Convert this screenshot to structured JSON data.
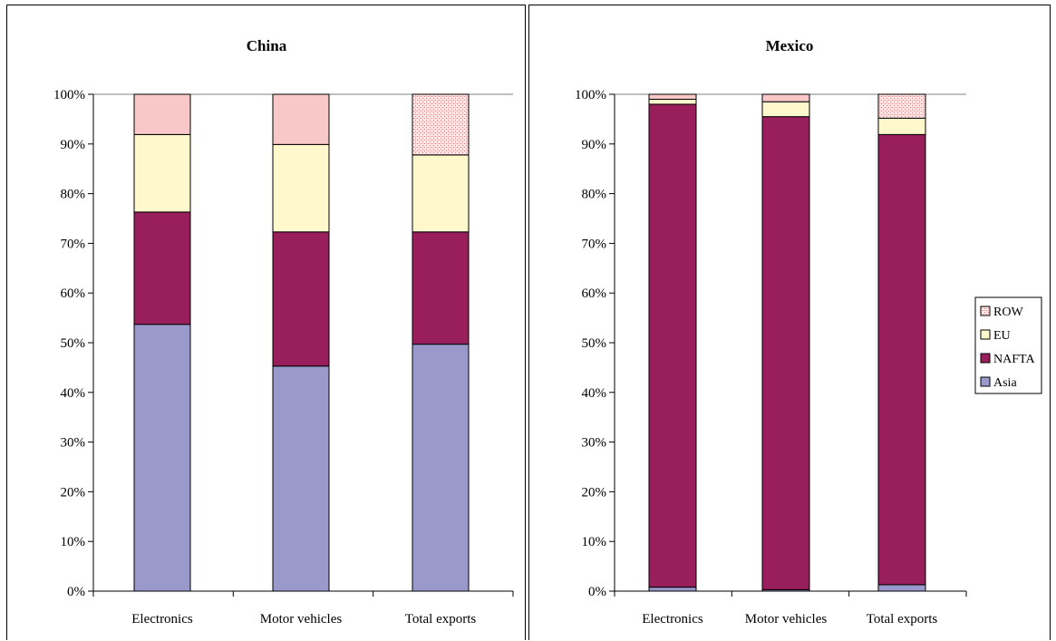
{
  "chart_data": [
    {
      "type": "bar",
      "stacked": true,
      "title": "China",
      "categories": [
        "Electronics",
        "Motor vehicles",
        "Total exports"
      ],
      "yticks": [
        "0%",
        "10%",
        "20%",
        "30%",
        "40%",
        "50%",
        "60%",
        "70%",
        "80%",
        "90%",
        "100%"
      ],
      "ylim": [
        0,
        100
      ],
      "series": [
        {
          "name": "Asia",
          "values": [
            53.7,
            45.3,
            49.7
          ]
        },
        {
          "name": "NAFTA",
          "values": [
            22.6,
            27.0,
            22.6
          ]
        },
        {
          "name": "EU",
          "values": [
            15.6,
            17.6,
            15.5
          ]
        },
        {
          "name": "ROW",
          "values": [
            8.1,
            10.1,
            12.2
          ]
        }
      ]
    },
    {
      "type": "bar",
      "stacked": true,
      "title": "Mexico",
      "categories": [
        "Electronics",
        "Motor vehicles",
        "Total exports"
      ],
      "yticks": [
        "0%",
        "10%",
        "20%",
        "30%",
        "40%",
        "50%",
        "60%",
        "70%",
        "80%",
        "90%",
        "100%"
      ],
      "ylim": [
        0,
        100
      ],
      "legend_position": "right",
      "series": [
        {
          "name": "Asia",
          "values": [
            0.8,
            0.3,
            1.3
          ]
        },
        {
          "name": "NAFTA",
          "values": [
            97.2,
            95.2,
            90.6
          ]
        },
        {
          "name": "EU",
          "values": [
            1.0,
            3.0,
            3.3
          ]
        },
        {
          "name": "ROW",
          "values": [
            1.0,
            1.5,
            4.8
          ]
        }
      ]
    }
  ],
  "legend": [
    "ROW",
    "EU",
    "NAFTA",
    "Asia"
  ],
  "colors": {
    "Asia": "#9999cc",
    "NAFTA": "#991f5c",
    "EU": "#fff8cc",
    "ROW": "#f8c8c8",
    "ROW_pattern": "#e07878"
  }
}
